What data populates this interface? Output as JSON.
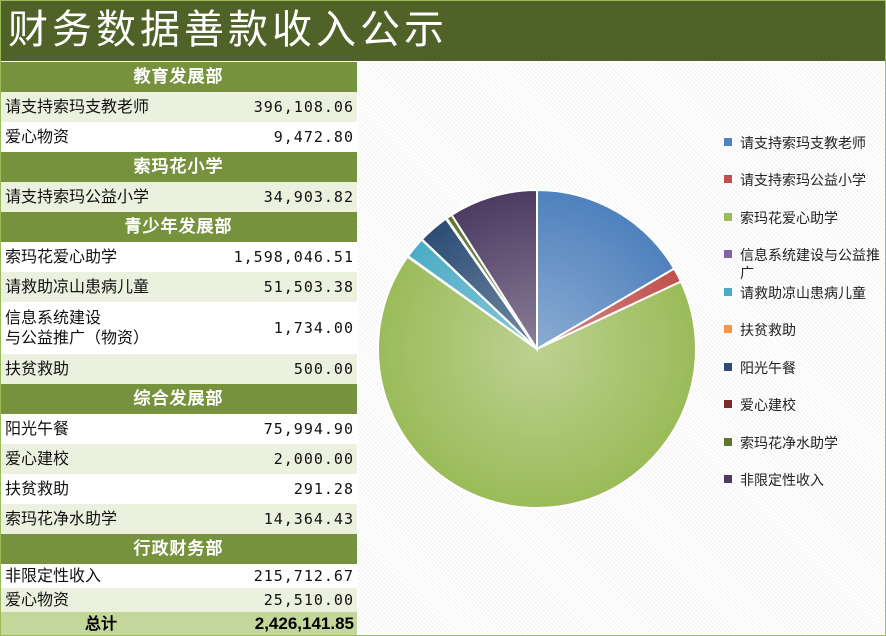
{
  "title": "财务数据善款收入公示",
  "sections": [
    {
      "name": "教育发展部",
      "rows": [
        {
          "label": "请支持索玛支教老师",
          "value": "396,108.06"
        },
        {
          "label": "爱心物资",
          "value": "9,472.80"
        }
      ]
    },
    {
      "name": "索玛花小学",
      "rows": [
        {
          "label": "请支持索玛公益小学",
          "value": "34,903.82"
        }
      ]
    },
    {
      "name": "青少年发展部",
      "rows": [
        {
          "label": "索玛花爱心助学",
          "value": "1,598,046.51"
        },
        {
          "label": "请救助凉山患病儿童",
          "value": "51,503.38"
        },
        {
          "label_line1": "信息系统建设",
          "label_line2": "与公益推广（物资）",
          "value": "1,734.00"
        },
        {
          "label": "扶贫救助",
          "value": "500.00"
        }
      ]
    },
    {
      "name": "综合发展部",
      "rows": [
        {
          "label": "阳光午餐",
          "value": "75,994.90"
        },
        {
          "label": "爱心建校",
          "value": "2,000.00"
        },
        {
          "label": "扶贫救助",
          "value": "291.28"
        },
        {
          "label": "索玛花净水助学",
          "value": "14,364.43"
        }
      ]
    },
    {
      "name": "行政财务部",
      "rows": [
        {
          "label": "非限定性收入",
          "value": "215,712.67"
        },
        {
          "label": "爱心物资",
          "value": "25,510.00"
        }
      ]
    }
  ],
  "total": {
    "label": "总计",
    "value": "2,426,141.85"
  },
  "chart_data": {
    "type": "pie",
    "title": "",
    "categories": [
      "请支持索玛支教老师",
      "请支持索玛公益小学",
      "索玛花爱心助学",
      "信息系统建设与公益推广",
      "请救助凉山患病儿童",
      "扶贫救助",
      "阳光午餐",
      "爱心建校",
      "索玛花净水助学",
      "非限定性收入"
    ],
    "values": [
      396108.06,
      34903.82,
      1598046.51,
      1734.0,
      51503.38,
      791.28,
      75994.9,
      2000.0,
      14364.43,
      215712.67
    ],
    "colors": [
      "#4f81bd",
      "#c0504d",
      "#9bbb59",
      "#8064a2",
      "#4bacc6",
      "#f79646",
      "#2c4d75",
      "#772c2a",
      "#5f7530",
      "#4d3b62"
    ],
    "legend_position": "right"
  }
}
